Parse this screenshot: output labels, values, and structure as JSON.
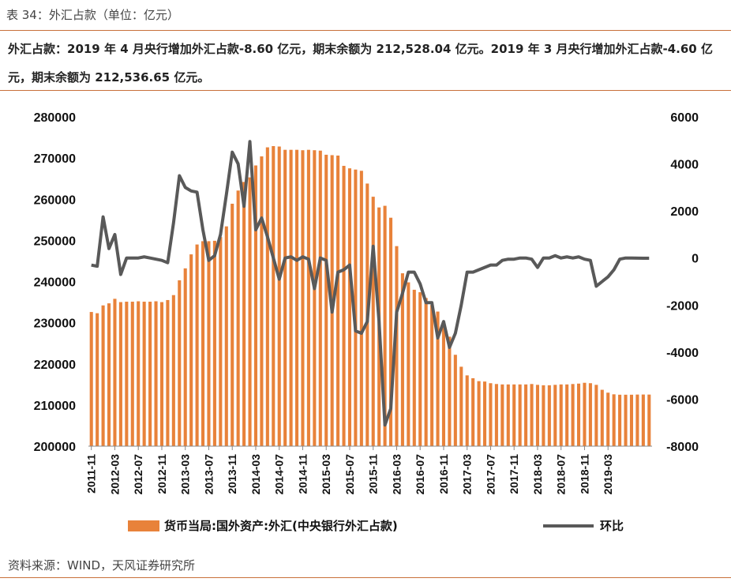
{
  "header": {
    "table_title": "表 34：外汇占款（单位：亿元）",
    "summary": "外汇占款：2019 年 4 月央行增加外汇占款-8.60 亿元，期末余额为 212,528.04 亿元。2019 年 3 月央行增加外汇占款-4.60 亿元，期末余额为 212,536.65 亿元。"
  },
  "footer": {
    "source": "资料来源：WIND，天风证券研究所"
  },
  "colors": {
    "bar": "#e8823a",
    "line": "#595959",
    "rule": "#c8703a"
  },
  "chart_data": {
    "type": "bar+line",
    "x_tick_labels": [
      "2011-11",
      "2012-03",
      "2012-07",
      "2012-11",
      "2013-03",
      "2013-07",
      "2013-11",
      "2014-03",
      "2014-07",
      "2014-11",
      "2015-03",
      "2015-07",
      "2015-11",
      "2016-03",
      "2016-07",
      "2016-11",
      "2017-03",
      "2017-07",
      "2017-11",
      "2018-03",
      "2018-07",
      "2018-11",
      "2019-03"
    ],
    "x_start": "2011-11",
    "left_axis": {
      "ticks": [
        "200000",
        "210000",
        "220000",
        "230000",
        "240000",
        "250000",
        "260000",
        "270000",
        "280000"
      ],
      "ylim": [
        200000,
        280000
      ]
    },
    "right_axis": {
      "ticks": [
        "-8000",
        "-6000",
        "-4000",
        "-2000",
        "0",
        "2000",
        "4000",
        "6000"
      ],
      "ylim": [
        -8000,
        6000
      ]
    },
    "series": [
      {
        "name": "货币当局:国外资产:外汇(中央银行外汇占款)",
        "type": "bar",
        "axis": "left",
        "values": [
          232600,
          232300,
          234200,
          234700,
          235800,
          235000,
          235100,
          235100,
          235200,
          235100,
          235100,
          235200,
          235000,
          235500,
          236700,
          240300,
          243200,
          246600,
          249000,
          249800,
          249800,
          249900,
          250800,
          253400,
          258900,
          262100,
          264200,
          265300,
          268200,
          270400,
          272600,
          272900,
          272800,
          272000,
          272000,
          272000,
          271900,
          272000,
          271900,
          271800,
          270800,
          270700,
          270600,
          268100,
          267500,
          267200,
          266900,
          263800,
          260600,
          258000,
          258400,
          255500,
          248600,
          242000,
          239800,
          238000,
          237400,
          236000,
          234300,
          232700,
          230000,
          226600,
          222200,
          219300,
          217200,
          216500,
          215800,
          215700,
          215300,
          215100,
          215000,
          215000,
          215000,
          215000,
          215000,
          215100,
          214900,
          214800,
          214800,
          214900,
          215000,
          215000,
          215100,
          215200,
          215400,
          215300,
          214900,
          213700,
          213000,
          212600,
          212500,
          212500,
          212500,
          212540,
          212550,
          212536
        ]
      },
      {
        "name": "环比",
        "type": "line",
        "axis": "right",
        "values": [
          -300,
          -350,
          1750,
          400,
          1000,
          -700,
          0,
          0,
          0,
          50,
          0,
          -50,
          -100,
          -200,
          1500,
          3500,
          3000,
          2850,
          2800,
          1200,
          -100,
          100,
          1000,
          2700,
          4500,
          4000,
          2200,
          4950,
          1200,
          1700,
          900,
          0,
          -900,
          0,
          50,
          -100,
          50,
          -50,
          -1300,
          0,
          -100,
          -2300,
          -600,
          -500,
          -300,
          -3100,
          -3200,
          -2700,
          500,
          -2700,
          -7100,
          -6400,
          -2300,
          -1500,
          -600,
          -600,
          -1100,
          -1900,
          -1900,
          -3400,
          -2700,
          -3800,
          -3200,
          -2000,
          -600,
          -600,
          -500,
          -400,
          -300,
          -300,
          -100,
          -50,
          -50,
          0,
          0,
          -50,
          -400,
          0,
          0,
          100,
          0,
          50,
          0,
          50,
          -50,
          -100,
          -1200,
          -1000,
          -800,
          -500,
          -50,
          0,
          0,
          -5,
          -10,
          -9
        ]
      }
    ]
  }
}
